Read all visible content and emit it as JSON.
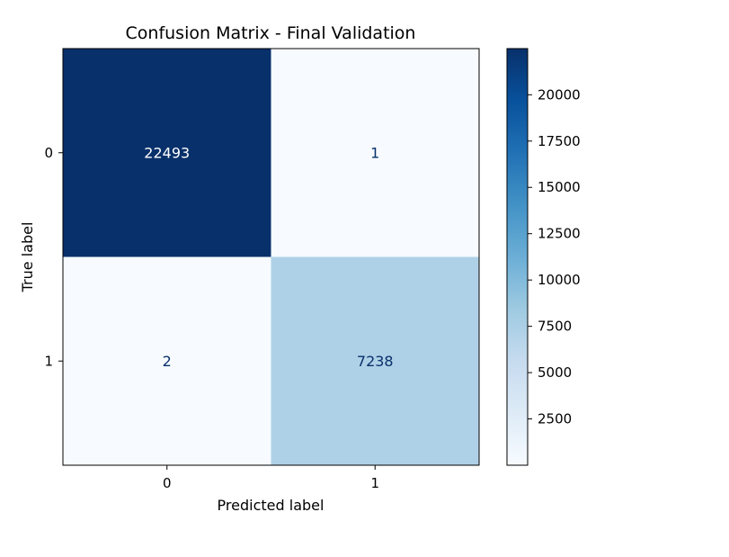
{
  "chart_data": {
    "type": "heatmap",
    "title": "Confusion Matrix - Final Validation",
    "xlabel": "Predicted label",
    "ylabel": "True label",
    "x_categories": [
      "0",
      "1"
    ],
    "y_categories": [
      "0",
      "1"
    ],
    "matrix": [
      [
        22493,
        1
      ],
      [
        2,
        7238
      ]
    ],
    "colormap": "Blues",
    "colorbar": {
      "ticks": [
        2500,
        5000,
        7500,
        10000,
        12500,
        15000,
        17500,
        20000
      ],
      "range": [
        1,
        22493
      ]
    },
    "grid": false,
    "legend": "colorbar-right"
  },
  "colors": {
    "low": "#f7fbff",
    "high": "#08306b",
    "text_dark_bg": "#ffffff",
    "text_light_bg": "#08306b"
  }
}
